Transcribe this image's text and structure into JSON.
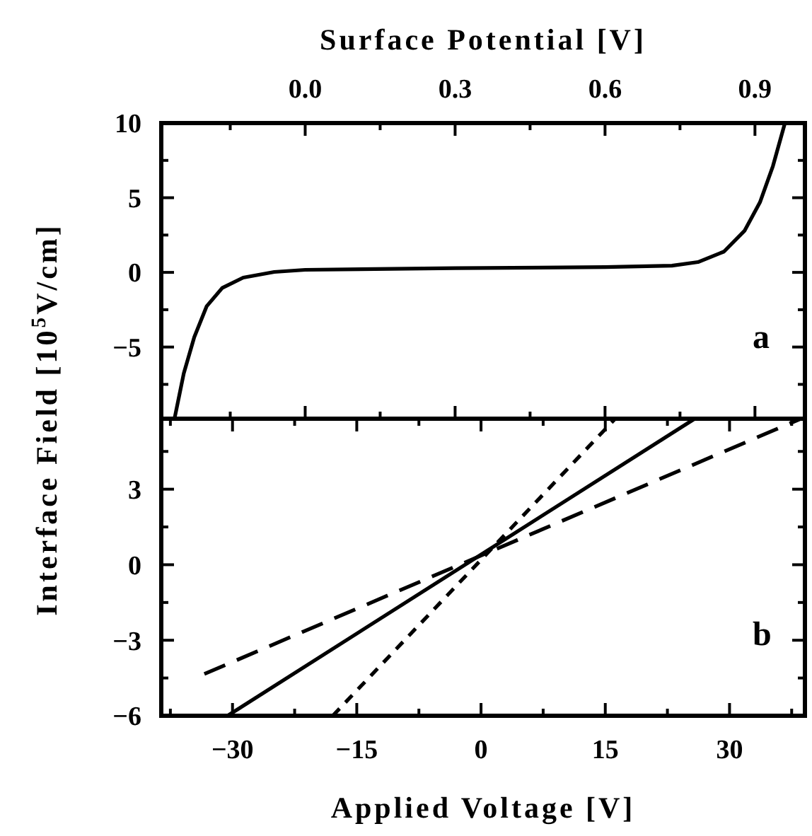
{
  "chart_data": [
    {
      "type": "line",
      "xlabel": "Surface Potential  [V]",
      "ylabel": "Interface Field  [10$^{5}$V/cm]",
      "xlim": [
        -0.288,
        1.0
      ],
      "xticks": [
        {
          "value": -0.15,
          "label": null
        },
        {
          "value": 0,
          "label": "0.0"
        },
        {
          "value": 0.15,
          "label": null
        },
        {
          "value": 0.3,
          "label": "0.3"
        },
        {
          "value": 0.45,
          "label": null
        },
        {
          "value": 0.6,
          "label": "0.6"
        },
        {
          "value": 0.75,
          "label": null
        },
        {
          "value": 0.9,
          "label": "0.9"
        }
      ],
      "ylim": [
        -9.8,
        10
      ],
      "yticks": [
        {
          "value": -7.5,
          "label": null
        },
        -5,
        {
          "value": -2.5,
          "label": null
        },
        0,
        {
          "value": 2.5,
          "label": null
        },
        5,
        {
          "value": 7.5,
          "label": null
        },
        10
      ],
      "line_style": "solid",
      "annotations": [
        {
          "text": "a"
        }
      ],
      "series": [
        {
          "color": "#000000",
          "x": [
            -0.261,
            -0.243,
            -0.222,
            -0.197,
            -0.166,
            -0.124,
            -0.062,
            0,
            0.3,
            0.6,
            0.734,
            0.786,
            0.838,
            0.879,
            0.91,
            0.936,
            0.96
          ],
          "values": [
            -9.72,
            -6.77,
            -4.34,
            -2.26,
            -1.04,
            -0.35,
            0.03,
            0.17,
            0.28,
            0.35,
            0.45,
            0.69,
            1.39,
            2.78,
            4.69,
            7.12,
            10
          ]
        }
      ]
    },
    {
      "type": "line",
      "xlabel": "Applied Voltage  [V]",
      "xlim": [
        -38.6,
        39.1
      ],
      "xticks": [
        {
          "value": -37.5,
          "label": null
        },
        -30,
        {
          "value": -22.5,
          "label": null
        },
        -15,
        {
          "value": -7.5,
          "label": null
        },
        0,
        {
          "value": 7.5,
          "label": null
        },
        15,
        {
          "value": 22.5,
          "label": null
        },
        30,
        {
          "value": 37.5,
          "label": null
        }
      ],
      "ylim": [
        -6,
        5.8
      ],
      "yticks": [
        -6,
        {
          "value": -4.5,
          "label": null
        },
        -3,
        {
          "value": -1.5,
          "label": null
        },
        0,
        {
          "value": 1.5,
          "label": null
        },
        3,
        {
          "value": 4.5,
          "label": null
        }
      ],
      "annotations": [
        {
          "text": "b"
        }
      ],
      "series": [
        {
          "color": "#000000",
          "line_style": "solid",
          "x": [
            -30.6,
            25.8
          ],
          "values": [
            -6,
            5.8
          ]
        },
        {
          "color": "#000000",
          "line_style": "dotted",
          "x": [
            -17.9,
            16.2
          ],
          "values": [
            -6,
            5.8
          ]
        },
        {
          "color": "#000000",
          "line_style": "dashed",
          "x": [
            -33.4,
            38.6
          ],
          "values": [
            -4.34,
            5.8
          ]
        }
      ]
    }
  ]
}
